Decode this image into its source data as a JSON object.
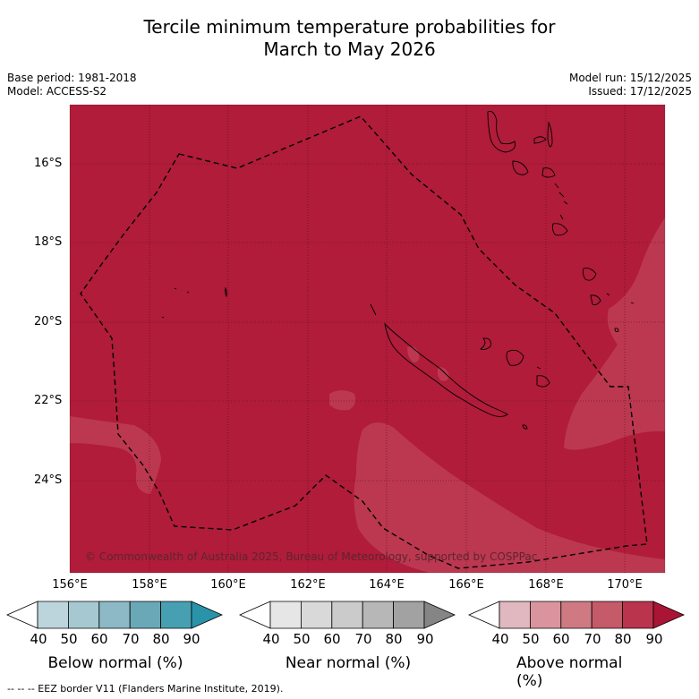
{
  "title": {
    "line1": "Tercile minimum temperature probabilities for",
    "line2": "March to May 2026"
  },
  "meta": {
    "base_period": "Base period: 1981-2018",
    "model": "Model: ACCESS-S2",
    "model_run": "Model run: 15/12/2025",
    "issued": "Issued: 17/12/2025"
  },
  "map": {
    "lat_labels": [
      "16°S",
      "18°S",
      "20°S",
      "22°S",
      "24°S"
    ],
    "lon_labels": [
      "156°E",
      "158°E",
      "160°E",
      "162°E",
      "164°E",
      "166°E",
      "168°E",
      "170°E"
    ],
    "copyright": "© Commonwealth of Australia 2025, Bureau of Meteorology, supported by COSPPac",
    "main_color": "#b01c3a",
    "light_color": "#bb3850"
  },
  "colorbars": [
    {
      "label": "Below normal (%)",
      "ticks": [
        "40",
        "50",
        "60",
        "70",
        "80",
        "90"
      ],
      "colors": [
        "#ffffff",
        "#bcd5dd",
        "#a6c9d1",
        "#8db9c6",
        "#6aa8b8",
        "#47a0b1",
        "#2a93aa"
      ]
    },
    {
      "label": "Near normal (%)",
      "ticks": [
        "40",
        "50",
        "60",
        "70",
        "80",
        "90"
      ],
      "colors": [
        "#ffffff",
        "#e6e6e6",
        "#d9d9d9",
        "#cbcbcb",
        "#b7b7b7",
        "#a2a2a2",
        "#858585"
      ]
    },
    {
      "label": "Above normal (%)",
      "ticks": [
        "40",
        "50",
        "60",
        "70",
        "80",
        "90"
      ],
      "colors": [
        "#ffffff",
        "#e2b8c0",
        "#da949d",
        "#cf7a83",
        "#c55a68",
        "#b9344c",
        "#ab1535"
      ]
    }
  ],
  "footer": "--  --  -- EEZ border V11 (Flanders Marine Institute, 2019)."
}
